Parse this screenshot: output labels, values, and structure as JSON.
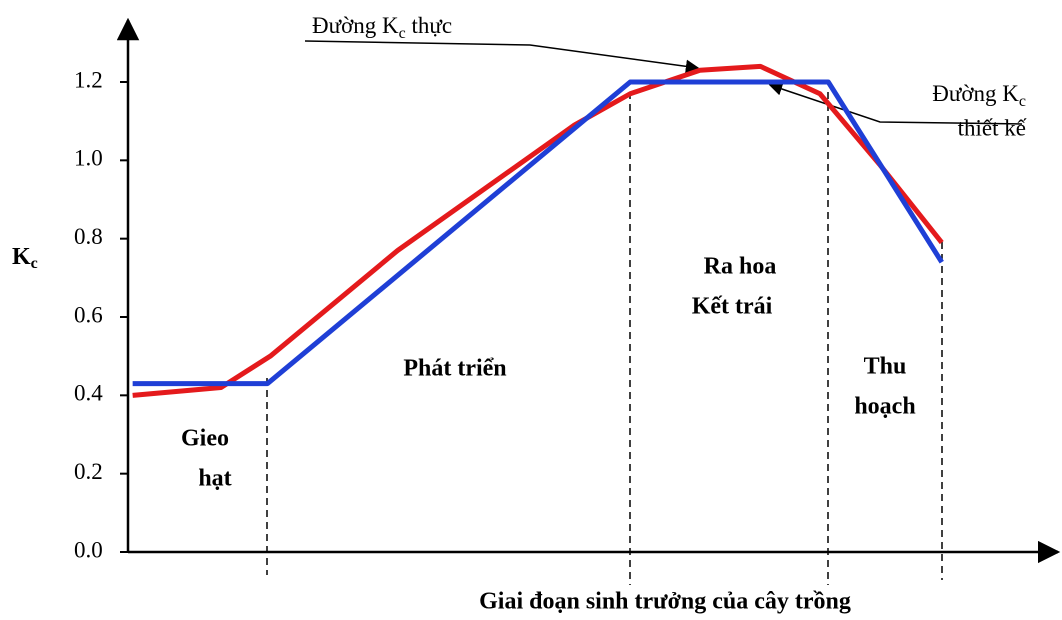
{
  "chart_data": {
    "type": "line",
    "ylabel": {
      "main": "K",
      "sub": "c"
    },
    "xlabel": "Giai đoạn sinh trưởng của cây trồng",
    "xlim": [
      0,
      100
    ],
    "ylim": [
      0,
      1.2
    ],
    "yticks": [
      {
        "value": 0,
        "label": "0.0"
      },
      0.2,
      0.4,
      0.6,
      0.8,
      {
        "value": 1,
        "label": "1.0"
      },
      1.2
    ],
    "series": [
      {
        "color": "#e41a1c",
        "x": [
          0.5,
          10,
          15.3,
          29,
          48,
          54,
          61.5,
          68,
          74.4,
          80.8,
          87.5
        ],
        "values": [
          0.4,
          0.42,
          0.5,
          0.77,
          1.09,
          1.17,
          1.23,
          1.24,
          1.17,
          0.99,
          0.79
        ]
      },
      {
        "color": "#1f3fd6",
        "x": [
          0.5,
          15,
          54,
          75.3,
          87.5
        ],
        "values": [
          0.43,
          0.43,
          1.2,
          1.2,
          0.74
        ]
      }
    ],
    "annotations": {
      "actual": {
        "main": "Đường K",
        "sub": "c",
        "rest": " thực"
      },
      "design": {
        "main": "Đường K",
        "sub": "c",
        "line2": "thiết kế"
      }
    },
    "stages": [
      {
        "lines": [
          "Gieo",
          "hạt"
        ]
      },
      {
        "lines": [
          "Phát triển"
        ]
      },
      {
        "lines": [
          "Ra hoa",
          "Kết trái"
        ]
      },
      {
        "lines": [
          "Thu",
          "hoạch"
        ]
      }
    ]
  }
}
